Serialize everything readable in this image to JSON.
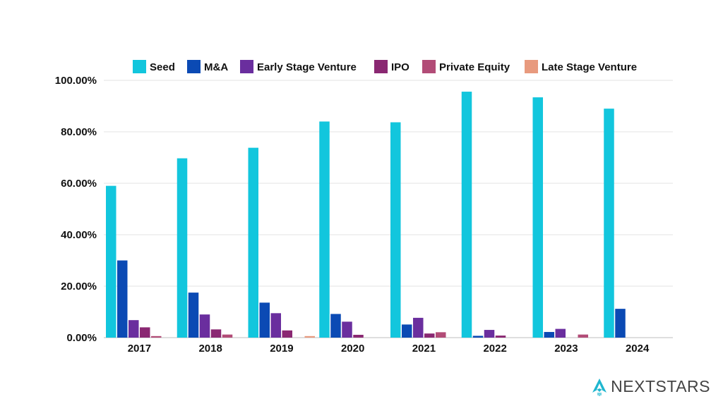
{
  "brand": {
    "name": "NEXTSTARS",
    "color": "#4a4a4a",
    "accent": "#1fb6cf"
  },
  "chart_data": {
    "type": "bar",
    "categories": [
      "2017",
      "2018",
      "2019",
      "2020",
      "2021",
      "2022",
      "2023",
      "2024"
    ],
    "ylim": [
      0,
      100
    ],
    "yticks": [
      "0.00%",
      "20.00%",
      "40.00%",
      "60.00%",
      "80.00%",
      "100.00%"
    ],
    "ytick_values": [
      0,
      20,
      40,
      60,
      80,
      100
    ],
    "grid": true,
    "legend_position": "top",
    "series": [
      {
        "name": "Seed",
        "color": "#12c6dd",
        "values": [
          59.0,
          69.7,
          73.8,
          84.0,
          83.7,
          95.6,
          93.4,
          89.0
        ]
      },
      {
        "name": "M&A",
        "color": "#0b4ab4",
        "values": [
          30.0,
          17.5,
          13.6,
          9.2,
          5.1,
          0.7,
          2.2,
          11.2
        ]
      },
      {
        "name": "Early Stage Venture",
        "color": "#6a2e9e",
        "values": [
          6.8,
          9.0,
          9.5,
          6.2,
          7.7,
          3.0,
          3.4,
          0
        ]
      },
      {
        "name": "IPO",
        "color": "#8a2872",
        "values": [
          4.0,
          3.2,
          2.8,
          1.1,
          1.6,
          0.8,
          0,
          0
        ]
      },
      {
        "name": "Private Equity",
        "color": "#b24c77",
        "values": [
          0.6,
          1.2,
          0,
          0,
          2.1,
          0,
          1.2,
          0
        ]
      },
      {
        "name": "Late Stage Venture",
        "color": "#e89a7e",
        "values": [
          0,
          0,
          0.6,
          0,
          0,
          0,
          0,
          0
        ]
      }
    ]
  }
}
